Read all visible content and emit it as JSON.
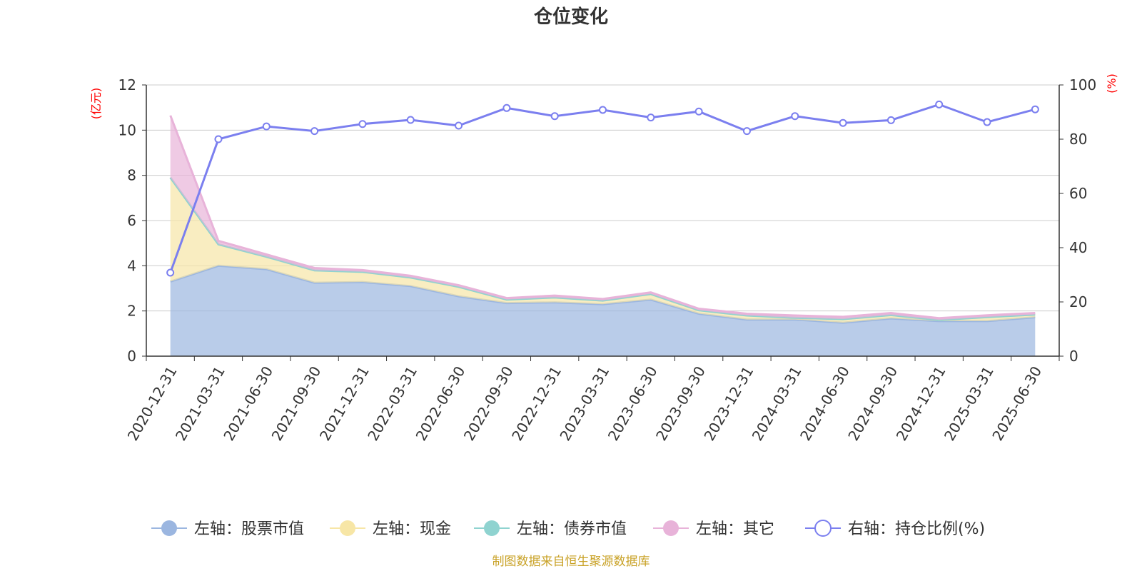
{
  "title": "仓位变化",
  "source": "制图数据来自恒生聚源数据库",
  "chart_data": {
    "type": "area",
    "categories": [
      "2020-12-31",
      "2021-03-31",
      "2021-06-30",
      "2021-09-30",
      "2021-12-31",
      "2022-03-31",
      "2022-06-30",
      "2022-09-30",
      "2022-12-31",
      "2023-03-31",
      "2023-06-30",
      "2023-09-30",
      "2023-12-31",
      "2024-03-31",
      "2024-06-30",
      "2024-09-30",
      "2024-12-31",
      "2025-03-31",
      "2025-06-30"
    ],
    "left_axis": {
      "unit": "(亿元)",
      "ylim": [
        0,
        12
      ],
      "ticks": [
        0,
        2,
        4,
        6,
        8,
        10,
        12
      ]
    },
    "right_axis": {
      "unit": "(%)",
      "ylim": [
        0,
        100
      ],
      "ticks": [
        0,
        20,
        40,
        60,
        80,
        100
      ]
    },
    "series": [
      {
        "name": "左轴：股票市值",
        "axis": "left",
        "type": "stacked-area",
        "color": "#9bb6e0",
        "values": [
          3.3,
          4.0,
          3.85,
          3.25,
          3.28,
          3.1,
          2.65,
          2.35,
          2.38,
          2.3,
          2.5,
          1.88,
          1.62,
          1.62,
          1.48,
          1.67,
          1.55,
          1.55,
          1.72
        ]
      },
      {
        "name": "左轴：现金",
        "axis": "left",
        "type": "stacked-area",
        "color": "#f7e6a6",
        "values": [
          4.6,
          0.95,
          0.55,
          0.55,
          0.45,
          0.38,
          0.42,
          0.15,
          0.22,
          0.16,
          0.25,
          0.15,
          0.18,
          0.08,
          0.16,
          0.15,
          0.05,
          0.18,
          0.12
        ]
      },
      {
        "name": "左轴：债券市值",
        "axis": "left",
        "type": "stacked-area",
        "color": "#8fd3d0",
        "values": [
          0,
          0,
          0,
          0,
          0,
          0,
          0,
          0,
          0,
          0,
          0,
          0,
          0,
          0,
          0,
          0,
          0,
          0,
          0
        ]
      },
      {
        "name": "左轴：其它",
        "axis": "left",
        "type": "stacked-area",
        "color": "#e8b3d9",
        "values": [
          2.75,
          0.15,
          0.1,
          0.1,
          0.08,
          0.08,
          0.07,
          0.07,
          0.08,
          0.07,
          0.07,
          0.07,
          0.08,
          0.1,
          0.1,
          0.09,
          0.08,
          0.08,
          0.07
        ]
      },
      {
        "name": "右轴：持仓比例(%)",
        "axis": "right",
        "type": "line",
        "color": "#7b7fef",
        "values": [
          30.8,
          80.0,
          84.7,
          83.0,
          85.6,
          87.1,
          85.0,
          91.5,
          88.5,
          90.8,
          88.0,
          90.2,
          83.0,
          88.5,
          86.0,
          87.0,
          92.8,
          86.3,
          91.0
        ]
      }
    ]
  }
}
